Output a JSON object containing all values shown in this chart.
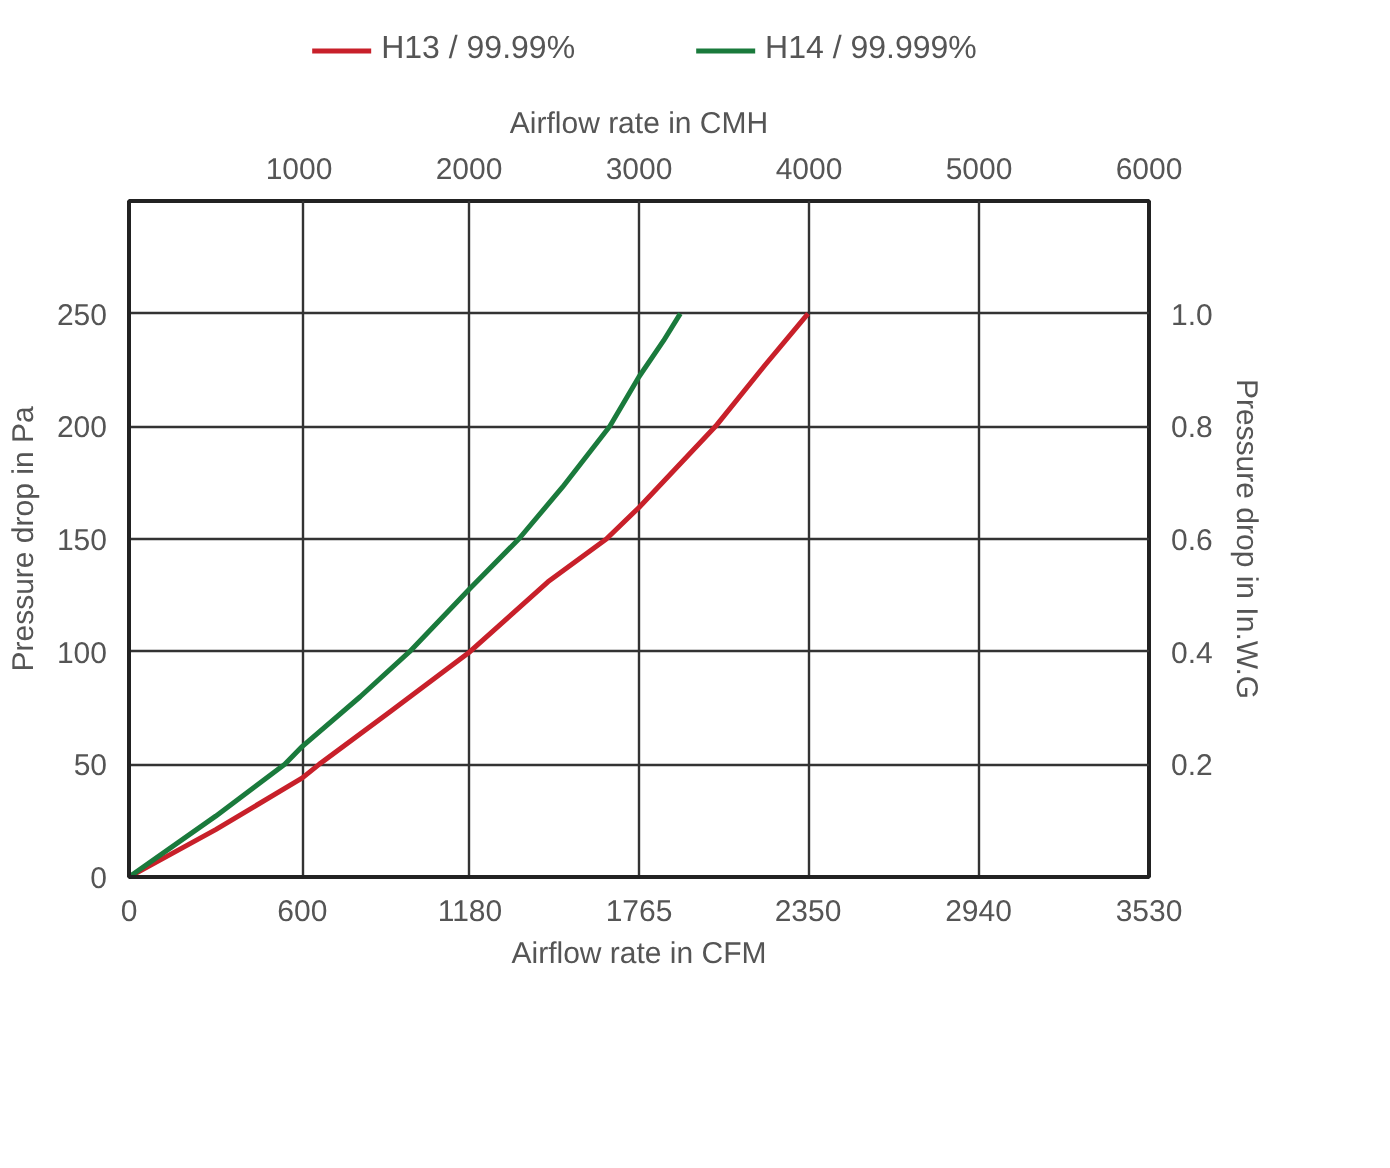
{
  "chart_data": {
    "type": "line",
    "xlabel": "Airflow rate in CFM",
    "ylabel": "Pressure drop in Pa",
    "y2label": "Pressure drop in In.W.G",
    "x2label": "Airflow rate in CMH",
    "xlim": [
      0,
      3530
    ],
    "xticks": [
      0,
      600,
      1180,
      1765,
      2350,
      2940,
      3530
    ],
    "x2lim": [
      0,
      6000
    ],
    "x2ticks": [
      1000,
      2000,
      3000,
      4000,
      5000,
      6000
    ],
    "ylim": [
      0,
      300
    ],
    "yticks": [
      0,
      50,
      100,
      150,
      200,
      250
    ],
    "y2lim": [
      0,
      1.2
    ],
    "y2ticks": [
      0.2,
      0.4,
      0.6,
      0.8,
      {
        "value": 1.0,
        "label": "1.0"
      }
    ],
    "grid": true,
    "legend": "top",
    "series": [
      {
        "name": "H13 / 99.99%",
        "color": "#c8202a",
        "x": [
          0,
          300,
          600,
          658,
          900,
          1180,
          1450,
          1652,
          1765,
          2030,
          2200,
          2350
        ],
        "values": [
          0,
          21,
          44,
          50,
          73,
          100,
          131,
          150,
          164,
          200,
          227,
          250
        ]
      },
      {
        "name": "H14 / 99.999%",
        "color": "#1a7a3c",
        "x": [
          0,
          300,
          539,
          600,
          800,
          971,
          1180,
          1349,
          1500,
          1664,
          1765,
          1850,
          1908
        ],
        "values": [
          0,
          27,
          50,
          58,
          80,
          100,
          128,
          150,
          173,
          200,
          222,
          238,
          250
        ]
      }
    ]
  }
}
